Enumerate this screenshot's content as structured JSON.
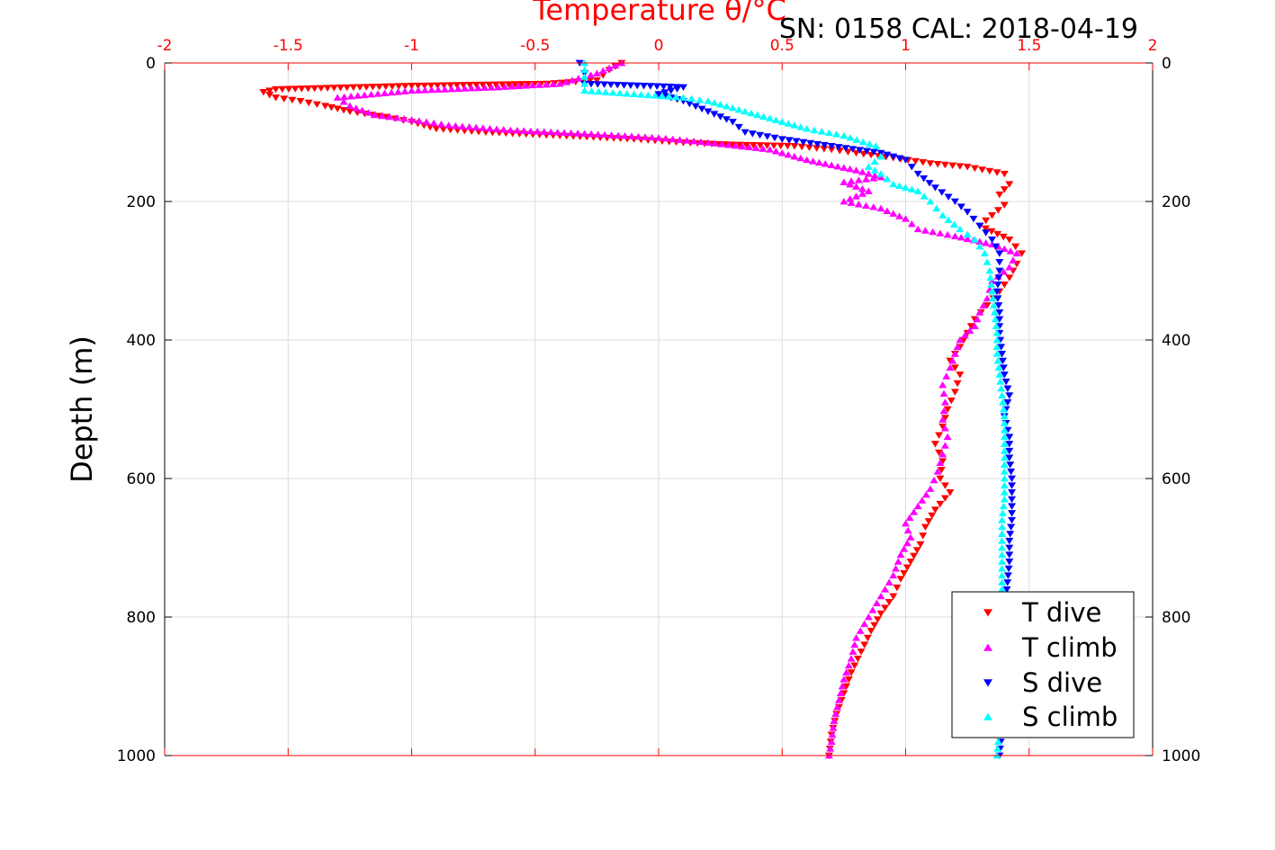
{
  "chart_data": {
    "type": "scatter",
    "title": "SN: 0158  CAL: 2018-04-19",
    "xlabel_top": "Temperature θ/°C",
    "ylabel": "Depth (m)",
    "xlim": [
      -2,
      2
    ],
    "ylim": [
      0,
      1000
    ],
    "y_reversed": true,
    "x_axis_position": "top",
    "x_axis_color": "#ff0000",
    "x_ticks": [
      "-2",
      "-1.5",
      "-1",
      "-0.5",
      "0",
      "0.5",
      "1",
      "1.5",
      "2"
    ],
    "y_ticks": [
      "0",
      "200",
      "400",
      "600",
      "800",
      "1000"
    ],
    "grid": true,
    "legend_position": "bottom-right",
    "series": [
      {
        "name": "T dive",
        "marker": "triangle-down",
        "color": "#ff0000",
        "points": [
          [
            -0.15,
            0
          ],
          [
            -0.2,
            10
          ],
          [
            -0.25,
            25
          ],
          [
            -0.45,
            30
          ],
          [
            -1.0,
            33
          ],
          [
            -1.55,
            38
          ],
          [
            -1.6,
            42
          ],
          [
            -1.55,
            50
          ],
          [
            -1.45,
            55
          ],
          [
            -1.35,
            62
          ],
          [
            -1.25,
            70
          ],
          [
            -1.1,
            78
          ],
          [
            -1.0,
            85
          ],
          [
            -0.9,
            95
          ],
          [
            -0.7,
            100
          ],
          [
            -0.4,
            105
          ],
          [
            -0.1,
            110
          ],
          [
            0.1,
            115
          ],
          [
            0.3,
            118
          ],
          [
            0.55,
            120
          ],
          [
            0.7,
            125
          ],
          [
            0.8,
            130
          ],
          [
            0.95,
            137
          ],
          [
            1.1,
            145
          ],
          [
            1.25,
            150
          ],
          [
            1.4,
            160
          ],
          [
            1.42,
            175
          ],
          [
            1.38,
            190
          ],
          [
            1.4,
            205
          ],
          [
            1.35,
            220
          ],
          [
            1.3,
            235
          ],
          [
            1.42,
            255
          ],
          [
            1.47,
            275
          ],
          [
            1.45,
            290
          ],
          [
            1.42,
            310
          ],
          [
            1.38,
            330
          ],
          [
            1.33,
            350
          ],
          [
            1.28,
            370
          ],
          [
            1.25,
            390
          ],
          [
            1.22,
            410
          ],
          [
            1.18,
            430
          ],
          [
            1.22,
            450
          ],
          [
            1.2,
            475
          ],
          [
            1.17,
            500
          ],
          [
            1.15,
            525
          ],
          [
            1.12,
            550
          ],
          [
            1.15,
            575
          ],
          [
            1.14,
            600
          ],
          [
            1.18,
            620
          ],
          [
            1.12,
            645
          ],
          [
            1.08,
            670
          ],
          [
            1.06,
            695
          ],
          [
            1.02,
            720
          ],
          [
            0.98,
            745
          ],
          [
            0.95,
            770
          ],
          [
            0.9,
            795
          ],
          [
            0.86,
            820
          ],
          [
            0.82,
            850
          ],
          [
            0.78,
            880
          ],
          [
            0.75,
            910
          ],
          [
            0.72,
            940
          ],
          [
            0.7,
            970
          ],
          [
            0.69,
            1000
          ]
        ]
      },
      {
        "name": "T climb",
        "marker": "triangle-up",
        "color": "#ff00ff",
        "points": [
          [
            -0.15,
            0
          ],
          [
            -0.25,
            15
          ],
          [
            -0.4,
            30
          ],
          [
            -0.65,
            35
          ],
          [
            -1.0,
            40
          ],
          [
            -1.3,
            50
          ],
          [
            -1.25,
            62
          ],
          [
            -1.15,
            75
          ],
          [
            -1.0,
            82
          ],
          [
            -0.85,
            90
          ],
          [
            -0.6,
            97
          ],
          [
            -0.3,
            102
          ],
          [
            0.0,
            108
          ],
          [
            0.2,
            115
          ],
          [
            0.45,
            125
          ],
          [
            0.6,
            140
          ],
          [
            0.8,
            155
          ],
          [
            0.9,
            165
          ],
          [
            0.75,
            172
          ],
          [
            0.85,
            185
          ],
          [
            0.75,
            200
          ],
          [
            0.9,
            210
          ],
          [
            1.0,
            225
          ],
          [
            1.05,
            240
          ],
          [
            1.2,
            250
          ],
          [
            1.35,
            262
          ],
          [
            1.45,
            275
          ],
          [
            1.42,
            295
          ],
          [
            1.35,
            315
          ],
          [
            1.33,
            340
          ],
          [
            1.3,
            360
          ],
          [
            1.28,
            380
          ],
          [
            1.22,
            400
          ],
          [
            1.2,
            420
          ],
          [
            1.18,
            440
          ],
          [
            1.15,
            465
          ],
          [
            1.16,
            490
          ],
          [
            1.15,
            515
          ],
          [
            1.17,
            540
          ],
          [
            1.15,
            565
          ],
          [
            1.13,
            590
          ],
          [
            1.1,
            615
          ],
          [
            1.05,
            640
          ],
          [
            1.0,
            665
          ],
          [
            1.02,
            685
          ],
          [
            0.98,
            710
          ],
          [
            0.95,
            740
          ],
          [
            0.9,
            770
          ],
          [
            0.85,
            800
          ],
          [
            0.8,
            830
          ],
          [
            0.78,
            860
          ],
          [
            0.75,
            890
          ],
          [
            0.73,
            920
          ],
          [
            0.71,
            950
          ],
          [
            0.7,
            980
          ],
          [
            0.69,
            1000
          ]
        ]
      },
      {
        "name": "S dive",
        "marker": "triangle-down",
        "color": "#0000ff",
        "points": [
          [
            -0.32,
            0
          ],
          [
            -0.3,
            15
          ],
          [
            -0.3,
            30
          ],
          [
            0.1,
            35
          ],
          [
            0.0,
            45
          ],
          [
            0.1,
            55
          ],
          [
            0.2,
            70
          ],
          [
            0.3,
            85
          ],
          [
            0.35,
            100
          ],
          [
            0.5,
            110
          ],
          [
            0.7,
            120
          ],
          [
            0.9,
            130
          ],
          [
            1.0,
            140
          ],
          [
            1.05,
            160
          ],
          [
            1.12,
            180
          ],
          [
            1.2,
            200
          ],
          [
            1.25,
            215
          ],
          [
            1.3,
            235
          ],
          [
            1.35,
            255
          ],
          [
            1.38,
            275
          ],
          [
            1.38,
            300
          ],
          [
            1.37,
            330
          ],
          [
            1.38,
            360
          ],
          [
            1.38,
            390
          ],
          [
            1.39,
            420
          ],
          [
            1.4,
            450
          ],
          [
            1.42,
            480
          ],
          [
            1.4,
            510
          ],
          [
            1.42,
            540
          ],
          [
            1.42,
            570
          ],
          [
            1.43,
            600
          ],
          [
            1.43,
            630
          ],
          [
            1.43,
            660
          ],
          [
            1.42,
            690
          ],
          [
            1.42,
            720
          ],
          [
            1.41,
            760
          ],
          [
            1.41,
            800
          ],
          [
            1.4,
            840
          ],
          [
            1.4,
            880
          ],
          [
            1.4,
            920
          ],
          [
            1.39,
            960
          ],
          [
            1.38,
            1000
          ]
        ]
      },
      {
        "name": "S climb",
        "marker": "triangle-up",
        "color": "#00ffff",
        "points": [
          [
            -0.3,
            0
          ],
          [
            -0.3,
            20
          ],
          [
            -0.3,
            40
          ],
          [
            -0.1,
            45
          ],
          [
            0.1,
            50
          ],
          [
            0.2,
            55
          ],
          [
            0.3,
            65
          ],
          [
            0.45,
            80
          ],
          [
            0.6,
            95
          ],
          [
            0.75,
            105
          ],
          [
            0.88,
            120
          ],
          [
            0.9,
            135
          ],
          [
            0.85,
            150
          ],
          [
            0.9,
            160
          ],
          [
            0.95,
            175
          ],
          [
            1.05,
            185
          ],
          [
            1.1,
            200
          ],
          [
            1.15,
            220
          ],
          [
            1.22,
            240
          ],
          [
            1.28,
            255
          ],
          [
            1.32,
            275
          ],
          [
            1.34,
            300
          ],
          [
            1.35,
            330
          ],
          [
            1.36,
            360
          ],
          [
            1.37,
            390
          ],
          [
            1.37,
            420
          ],
          [
            1.38,
            450
          ],
          [
            1.39,
            480
          ],
          [
            1.4,
            510
          ],
          [
            1.4,
            540
          ],
          [
            1.4,
            570
          ],
          [
            1.4,
            600
          ],
          [
            1.4,
            630
          ],
          [
            1.39,
            660
          ],
          [
            1.39,
            690
          ],
          [
            1.39,
            720
          ],
          [
            1.39,
            760
          ],
          [
            1.39,
            800
          ],
          [
            1.38,
            840
          ],
          [
            1.38,
            880
          ],
          [
            1.38,
            920
          ],
          [
            1.38,
            960
          ],
          [
            1.37,
            1000
          ]
        ]
      }
    ]
  }
}
